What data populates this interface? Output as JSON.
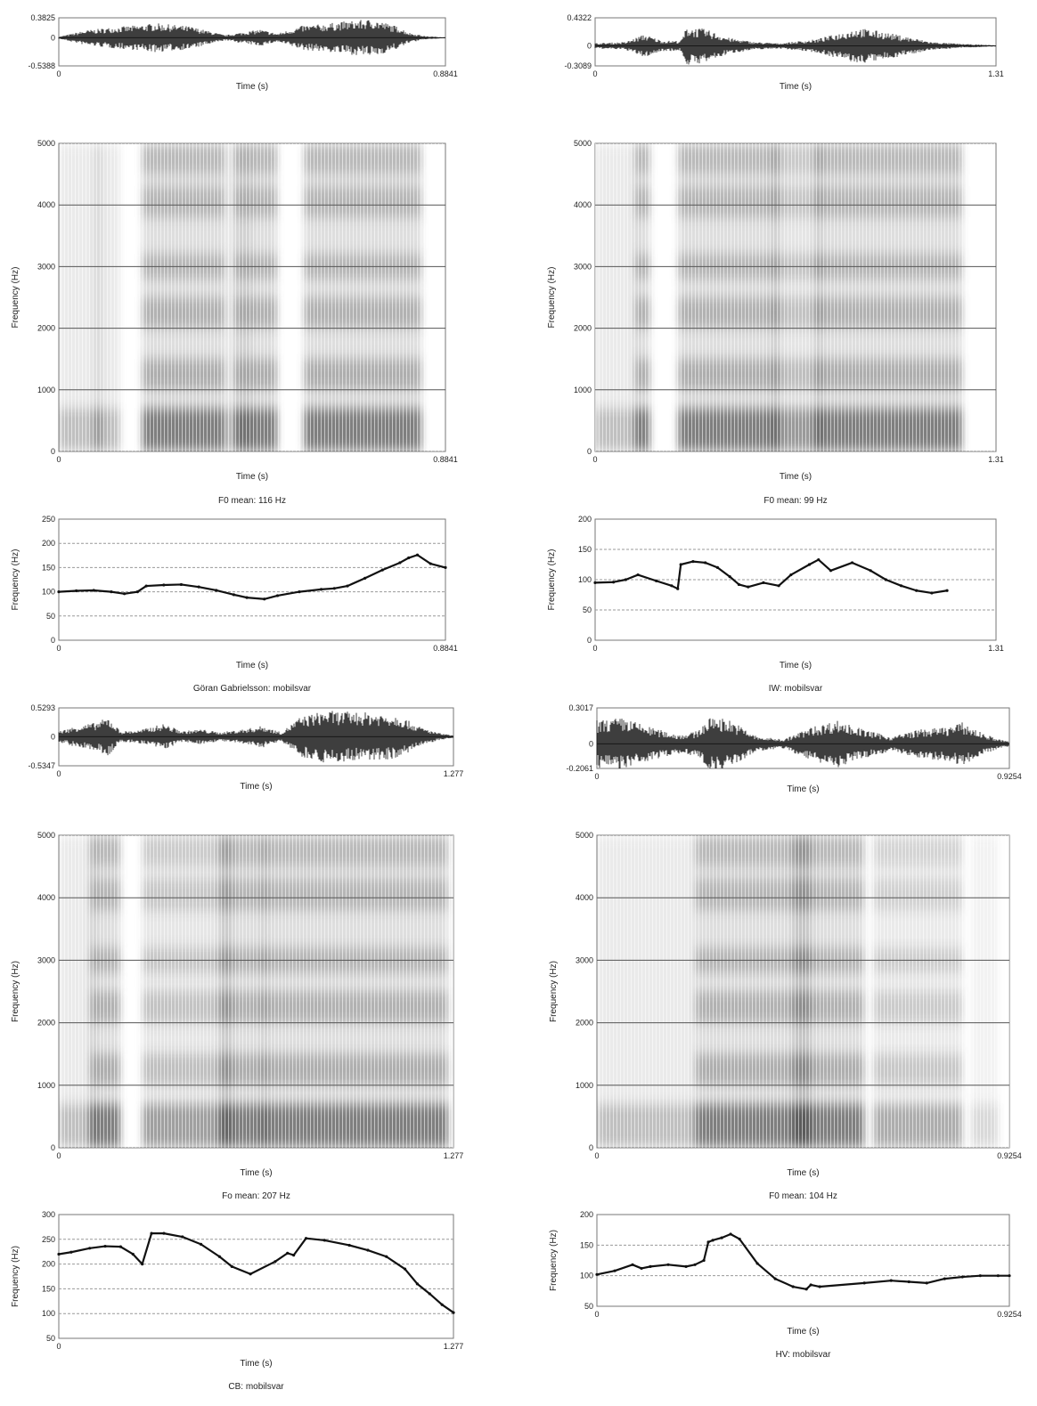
{
  "chart_data": [
    {
      "id": "wave-tl",
      "type": "line",
      "xlabel": "Time (s)",
      "ylabel": "",
      "xlim": [
        0,
        0.8841
      ],
      "ylim": [
        -0.5388,
        0.3825
      ],
      "x_ticks": [
        "0",
        "0.8841"
      ],
      "y_ticks": [
        {
          "value": 0.3825,
          "label": "0.3825"
        },
        {
          "value": 0,
          "label": "0"
        },
        {
          "value": -0.5388,
          "label": "-0.5388"
        }
      ],
      "envelope": {
        "x": [
          0,
          0.06,
          0.12,
          0.18,
          0.22,
          0.3,
          0.38,
          0.46,
          0.5,
          0.56,
          0.6,
          0.66,
          0.72,
          0.78,
          0.8,
          0.84,
          0.8841
        ],
        "amplitude": [
          0.02,
          0.14,
          0.2,
          0.24,
          0.28,
          0.22,
          0.05,
          0.16,
          0.08,
          0.24,
          0.26,
          0.32,
          0.36,
          0.2,
          0.1,
          0.03,
          0.01
        ]
      }
    },
    {
      "id": "wave-tr",
      "type": "line",
      "xlabel": "Time (s)",
      "ylabel": "",
      "xlim": [
        0,
        1.31
      ],
      "ylim": [
        -0.3089,
        0.4322
      ],
      "x_ticks": [
        "0",
        "1.31"
      ],
      "y_ticks": [
        {
          "value": 0.4322,
          "label": "0.4322"
        },
        {
          "value": 0,
          "label": "0"
        },
        {
          "value": -0.3089,
          "label": "-0.3089"
        }
      ],
      "envelope": {
        "x": [
          0,
          0.1,
          0.16,
          0.22,
          0.28,
          0.3,
          0.36,
          0.44,
          0.52,
          0.6,
          0.72,
          0.8,
          0.86,
          0.94,
          1.02,
          1.1,
          1.2,
          1.31
        ],
        "amplitude": [
          0.04,
          0.06,
          0.18,
          0.08,
          0.08,
          0.3,
          0.26,
          0.12,
          0.06,
          0.04,
          0.1,
          0.2,
          0.28,
          0.22,
          0.14,
          0.06,
          0.03,
          0.01
        ]
      }
    },
    {
      "id": "spec-tl",
      "type": "heatmap",
      "xlabel": "Time (s)",
      "ylabel": "Frequency (Hz)",
      "xlim": [
        0,
        0.8841
      ],
      "ylim": [
        0,
        5000
      ],
      "x_ticks": [
        "0",
        "0.8841"
      ],
      "y_ticks": [
        "0",
        "1000",
        "2000",
        "3000",
        "4000",
        "5000"
      ],
      "grid": true,
      "segments": [
        [
          0.0,
          0.1,
          1
        ],
        [
          0.08,
          0.14,
          1
        ],
        [
          0.19,
          0.38,
          2
        ],
        [
          0.38,
          0.44,
          0.8
        ],
        [
          0.4,
          0.5,
          2
        ],
        [
          0.56,
          0.83,
          2
        ]
      ]
    },
    {
      "id": "spec-tr",
      "type": "heatmap",
      "xlabel": "Time (s)",
      "ylabel": "Frequency (Hz)",
      "xlim": [
        0,
        1.31
      ],
      "ylim": [
        0,
        5000
      ],
      "x_ticks": [
        "0",
        "1.31"
      ],
      "y_ticks": [
        "0",
        "1000",
        "2000",
        "3000",
        "4000",
        "5000"
      ],
      "grid": true,
      "segments": [
        [
          0.0,
          0.14,
          1
        ],
        [
          0.13,
          0.18,
          2
        ],
        [
          0.27,
          0.6,
          2
        ],
        [
          0.58,
          0.74,
          1.6
        ],
        [
          0.72,
          1.2,
          2
        ]
      ]
    },
    {
      "id": "f0-tl",
      "type": "line",
      "title": "F0 mean: 116 Hz",
      "caption": "Göran Gabrielsson: mobilsvar",
      "xlabel": "Time (s)",
      "ylabel": "Frequency (Hz)",
      "xlim": [
        0,
        0.8841
      ],
      "ylim": [
        0,
        250
      ],
      "x_ticks": [
        "0",
        "0.8841"
      ],
      "y_ticks": [
        "0",
        "50",
        "100",
        "150",
        "200",
        "250"
      ],
      "grid": true,
      "x": [
        0,
        0.04,
        0.08,
        0.12,
        0.15,
        0.18,
        0.2,
        0.24,
        0.28,
        0.32,
        0.36,
        0.4,
        0.43,
        0.47,
        0.5,
        0.55,
        0.6,
        0.63,
        0.66,
        0.7,
        0.74,
        0.78,
        0.8,
        0.82,
        0.85,
        0.8841
      ],
      "y": [
        100,
        102,
        103,
        100,
        96,
        100,
        112,
        114,
        115,
        110,
        103,
        94,
        88,
        85,
        92,
        100,
        105,
        107,
        112,
        128,
        145,
        160,
        170,
        176,
        158,
        150
      ]
    },
    {
      "id": "f0-tr",
      "type": "line",
      "title": "F0 mean: 99 Hz",
      "caption": "IW: mobilsvar",
      "xlabel": "Time (s)",
      "ylabel": "Frequency (Hz)",
      "xlim": [
        0,
        1.31
      ],
      "ylim": [
        0,
        200
      ],
      "x_ticks": [
        "0",
        "1.31"
      ],
      "y_ticks": [
        "0",
        "50",
        "100",
        "150",
        "200"
      ],
      "grid": true,
      "x": [
        0,
        0.06,
        0.1,
        0.14,
        0.2,
        0.25,
        0.27,
        0.28,
        0.32,
        0.36,
        0.4,
        0.44,
        0.47,
        0.5,
        0.55,
        0.6,
        0.64,
        0.7,
        0.73,
        0.77,
        0.84,
        0.9,
        0.95,
        1.0,
        1.05,
        1.1,
        1.15
      ],
      "y": [
        95,
        96,
        100,
        108,
        98,
        90,
        85,
        125,
        130,
        128,
        120,
        105,
        92,
        88,
        95,
        90,
        108,
        125,
        133,
        115,
        128,
        115,
        100,
        90,
        82,
        78,
        82
      ]
    },
    {
      "id": "wave-bl",
      "type": "line",
      "xlabel": "Time (s)",
      "ylabel": "",
      "xlim": [
        0,
        1.277
      ],
      "ylim": [
        -0.5347,
        0.5293
      ],
      "x_ticks": [
        "0",
        "1.277"
      ],
      "y_ticks": [
        {
          "value": 0.5293,
          "label": "0.5293"
        },
        {
          "value": 0,
          "label": "0"
        },
        {
          "value": -0.5347,
          "label": "-0.5347"
        }
      ],
      "envelope": {
        "x": [
          0,
          0.06,
          0.12,
          0.16,
          0.2,
          0.26,
          0.3,
          0.34,
          0.4,
          0.46,
          0.52,
          0.6,
          0.66,
          0.72,
          0.78,
          0.86,
          0.94,
          1.02,
          1.1,
          1.16,
          1.22,
          1.277
        ],
        "amplitude": [
          0.1,
          0.2,
          0.26,
          0.36,
          0.1,
          0.12,
          0.18,
          0.24,
          0.1,
          0.14,
          0.08,
          0.14,
          0.2,
          0.08,
          0.36,
          0.48,
          0.46,
          0.44,
          0.4,
          0.2,
          0.08,
          0.02
        ]
      }
    },
    {
      "id": "wave-br",
      "type": "line",
      "xlabel": "Time (s)",
      "ylabel": "",
      "xlim": [
        0,
        0.9254
      ],
      "ylim": [
        -0.2061,
        0.3017
      ],
      "x_ticks": [
        "0",
        "0.9254"
      ],
      "y_ticks": [
        {
          "value": 0.3017,
          "label": "0.3017"
        },
        {
          "value": 0,
          "label": "0"
        },
        {
          "value": -0.2061,
          "label": "-0.2061"
        }
      ],
      "envelope": {
        "x": [
          0,
          0.06,
          0.12,
          0.18,
          0.22,
          0.26,
          0.3,
          0.36,
          0.42,
          0.48,
          0.54,
          0.6,
          0.66,
          0.72,
          0.78,
          0.82,
          0.86,
          0.9,
          0.9254
        ],
        "amplitude": [
          0.2,
          0.22,
          0.14,
          0.08,
          0.1,
          0.24,
          0.2,
          0.06,
          0.04,
          0.14,
          0.2,
          0.12,
          0.06,
          0.12,
          0.14,
          0.18,
          0.1,
          0.04,
          0.02
        ]
      }
    },
    {
      "id": "spec-bl",
      "type": "heatmap",
      "xlabel": "Time (s)",
      "ylabel": "Frequency (Hz)",
      "xlim": [
        0,
        1.277
      ],
      "ylim": [
        0,
        5000
      ],
      "x_ticks": [
        "0",
        "1.277"
      ],
      "y_ticks": [
        "0",
        "1000",
        "2000",
        "3000",
        "4000",
        "5000"
      ],
      "grid": true,
      "segments": [
        [
          0.0,
          0.12,
          1
        ],
        [
          0.1,
          0.2,
          2
        ],
        [
          0.27,
          0.56,
          1.5
        ],
        [
          0.52,
          0.67,
          2
        ],
        [
          0.66,
          1.26,
          2
        ]
      ]
    },
    {
      "id": "spec-br",
      "type": "heatmap",
      "xlabel": "Time (s)",
      "ylabel": "Frequency (Hz)",
      "xlim": [
        0,
        0.9254
      ],
      "ylim": [
        0,
        5000
      ],
      "x_ticks": [
        "0",
        "0.9254"
      ],
      "y_ticks": [
        "0",
        "1000",
        "2000",
        "3000",
        "4000",
        "5000"
      ],
      "grid": true,
      "segments": [
        [
          0.0,
          0.22,
          1
        ],
        [
          0.22,
          0.48,
          2
        ],
        [
          0.44,
          0.6,
          2
        ],
        [
          0.62,
          0.82,
          1.3
        ],
        [
          0.84,
          0.9,
          0.6
        ]
      ]
    },
    {
      "id": "f0-bl",
      "type": "line",
      "title": "Fo mean: 207 Hz",
      "caption": "CB: mobilsvar",
      "xlabel": "Time (s)",
      "ylabel": "Frequency (Hz)",
      "xlim": [
        0,
        1.277
      ],
      "ylim": [
        50,
        300
      ],
      "x_ticks": [
        "0",
        "1.277"
      ],
      "y_ticks": [
        "50",
        "100",
        "150",
        "200",
        "250",
        "300"
      ],
      "grid": true,
      "x": [
        0,
        0.04,
        0.1,
        0.15,
        0.2,
        0.24,
        0.27,
        0.3,
        0.34,
        0.4,
        0.46,
        0.52,
        0.56,
        0.62,
        0.7,
        0.74,
        0.76,
        0.8,
        0.86,
        0.94,
        1.0,
        1.06,
        1.12,
        1.16,
        1.2,
        1.24,
        1.277
      ],
      "y": [
        220,
        224,
        232,
        236,
        235,
        220,
        200,
        262,
        262,
        255,
        240,
        215,
        195,
        180,
        205,
        222,
        218,
        252,
        248,
        238,
        228,
        215,
        190,
        160,
        140,
        118,
        102
      ]
    },
    {
      "id": "f0-br",
      "type": "line",
      "title": "F0 mean: 104 Hz",
      "caption": "HV: mobilsvar",
      "xlabel": "Time (s)",
      "ylabel": "Frequency (Hz)",
      "xlim": [
        0,
        0.9254
      ],
      "ylim": [
        50,
        200
      ],
      "x_ticks": [
        "0",
        "0.9254"
      ],
      "y_ticks": [
        "50",
        "100",
        "150",
        "200"
      ],
      "grid": true,
      "x": [
        0,
        0.04,
        0.08,
        0.1,
        0.12,
        0.16,
        0.2,
        0.22,
        0.24,
        0.25,
        0.26,
        0.28,
        0.3,
        0.32,
        0.36,
        0.4,
        0.44,
        0.47,
        0.48,
        0.5,
        0.6,
        0.66,
        0.7,
        0.74,
        0.78,
        0.82,
        0.86,
        0.9,
        0.9254
      ],
      "y": [
        102,
        108,
        118,
        112,
        115,
        118,
        115,
        118,
        125,
        155,
        158,
        162,
        168,
        160,
        120,
        95,
        82,
        78,
        85,
        82,
        88,
        92,
        90,
        88,
        95,
        98,
        100,
        100,
        100
      ]
    }
  ]
}
